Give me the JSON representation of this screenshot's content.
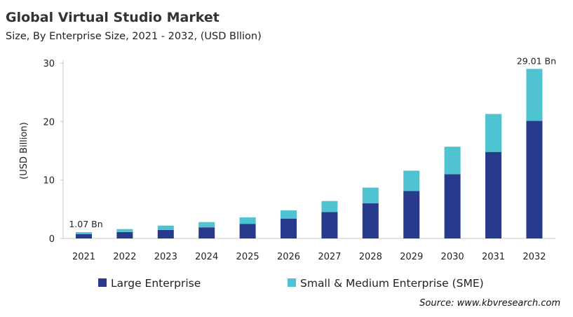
{
  "chart_data": {
    "type": "bar",
    "stacked": true,
    "title": "Global Virtual Studio Market",
    "subtitle": "Size, By Enterprise Size, 2021 - 2032, (USD Bllion)",
    "xlabel": "",
    "ylabel": "(USD Billion)",
    "ylim": [
      0,
      30
    ],
    "yticks": [
      0,
      10,
      20,
      30
    ],
    "grid": false,
    "legend_position": "bottom",
    "categories": [
      "2021",
      "2022",
      "2023",
      "2024",
      "2025",
      "2026",
      "2027",
      "2028",
      "2029",
      "2030",
      "2031",
      "2032"
    ],
    "series": [
      {
        "name": "Large Enterprise",
        "color": "#283A8C",
        "values": [
          0.75,
          1.1,
          1.45,
          1.9,
          2.5,
          3.4,
          4.5,
          6.0,
          8.1,
          11.0,
          14.8,
          20.1
        ]
      },
      {
        "name": "Small & Medium Enterprise (SME)",
        "color": "#4FC3D0",
        "values": [
          0.32,
          0.5,
          0.75,
          0.9,
          1.1,
          1.4,
          1.9,
          2.7,
          3.5,
          4.7,
          6.5,
          8.91
        ]
      }
    ],
    "annotations": [
      {
        "category": "2021",
        "text": "1.07 Bn"
      },
      {
        "category": "2032",
        "text": "29.01  Bn"
      }
    ],
    "source": "Source: www.kbvresearch.com"
  }
}
